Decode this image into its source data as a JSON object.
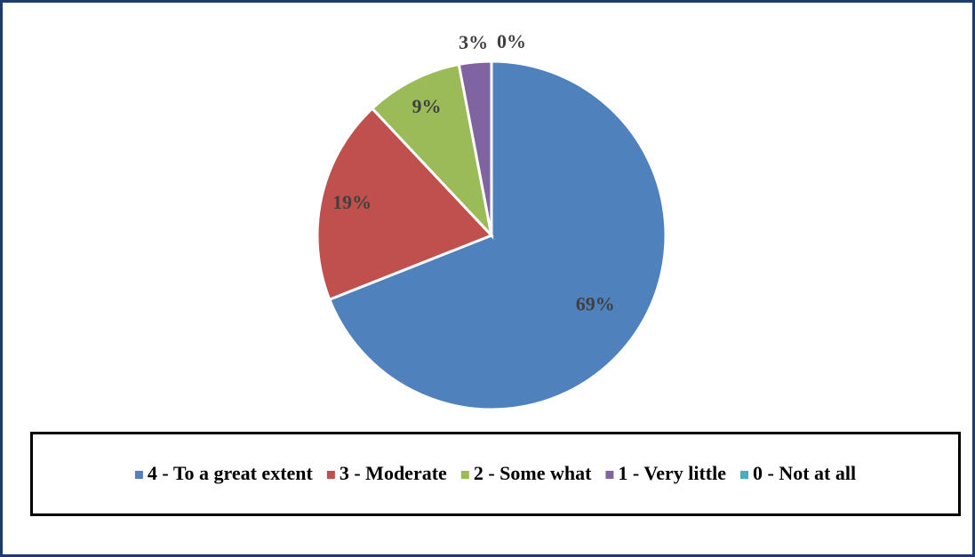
{
  "chart_data": {
    "type": "pie",
    "categories": [
      "4 - To a great extent",
      "3 - Moderate",
      "2 - Some what",
      "1 - Very little",
      "0 - Not at all"
    ],
    "values": [
      69,
      19,
      9,
      3,
      0
    ],
    "value_labels": [
      "69%",
      "19%",
      "9%",
      "3%",
      "0%"
    ],
    "colors": [
      "#4f81bd",
      "#c0504d",
      "#9bbb59",
      "#8064a2",
      "#4bacc6"
    ],
    "legend": "bottom"
  }
}
